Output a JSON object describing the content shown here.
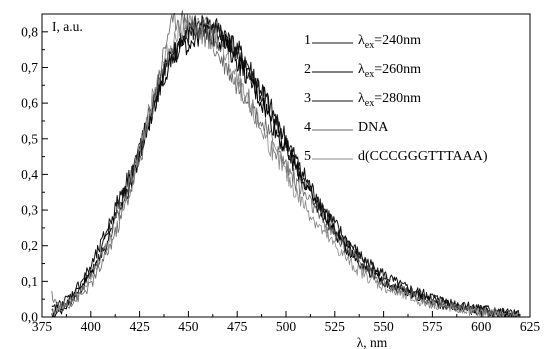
{
  "chart_data": {
    "type": "line",
    "ylabel": "I, a.u.",
    "xlabel": "λ, nm",
    "xlim": [
      375,
      625
    ],
    "ylim": [
      0.0,
      0.85
    ],
    "xticks": [
      "375",
      "400",
      "425",
      "450",
      "475",
      "500",
      "525",
      "550",
      "575",
      "600",
      "625"
    ],
    "yticks": [
      "0,0",
      "0,1",
      "0,2",
      "0,3",
      "0,4",
      "0,5",
      "0,6",
      "0,7",
      "0,8"
    ],
    "grid": false,
    "legend_position": "top-right",
    "legend": [
      {
        "num": "1",
        "label": "λex=240nm",
        "symbol": "λ",
        "sub": "ex",
        "rest": "=240nm"
      },
      {
        "num": "2",
        "label": "λex=260nm",
        "symbol": "λ",
        "sub": "ex",
        "rest": "=260nm"
      },
      {
        "num": "3",
        "label": "λex=280nm",
        "symbol": "λ",
        "sub": "ex",
        "rest": "=280nm"
      },
      {
        "num": "4",
        "label": "DNA"
      },
      {
        "num": "5",
        "label": "d(CCCGGGTTTAAA)"
      }
    ],
    "series": [
      {
        "name": "λex=240nm",
        "color": "#1a1a1a",
        "width": 1.0,
        "x": [
          380,
          385,
          390,
          395,
          400,
          405,
          410,
          415,
          420,
          425,
          430,
          435,
          440,
          445,
          450,
          455,
          460,
          465,
          470,
          475,
          480,
          485,
          490,
          495,
          500,
          505,
          510,
          515,
          520,
          525,
          530,
          535,
          540,
          545,
          550,
          555,
          560,
          565,
          570,
          575,
          580,
          585,
          590,
          595,
          600,
          605,
          610,
          615,
          620
        ],
        "y": [
          0.01,
          0.03,
          0.05,
          0.08,
          0.12,
          0.18,
          0.25,
          0.32,
          0.38,
          0.46,
          0.57,
          0.66,
          0.72,
          0.76,
          0.79,
          0.8,
          0.81,
          0.8,
          0.77,
          0.74,
          0.7,
          0.65,
          0.6,
          0.54,
          0.48,
          0.43,
          0.38,
          0.33,
          0.29,
          0.25,
          0.21,
          0.18,
          0.15,
          0.13,
          0.11,
          0.095,
          0.08,
          0.07,
          0.06,
          0.05,
          0.045,
          0.035,
          0.03,
          0.025,
          0.02,
          0.015,
          0.012,
          0.01,
          0.005
        ]
      },
      {
        "name": "λex=260nm",
        "color": "#000000",
        "width": 1.0,
        "x": [
          380,
          385,
          390,
          395,
          400,
          405,
          410,
          415,
          420,
          425,
          430,
          435,
          440,
          445,
          450,
          455,
          460,
          465,
          470,
          475,
          480,
          485,
          490,
          495,
          500,
          505,
          510,
          515,
          520,
          525,
          530,
          535,
          540,
          545,
          550,
          555,
          560,
          565,
          570,
          575,
          580,
          585,
          590,
          595,
          600,
          605,
          610,
          615,
          620
        ],
        "y": [
          0.0,
          0.02,
          0.05,
          0.09,
          0.12,
          0.17,
          0.23,
          0.3,
          0.37,
          0.45,
          0.55,
          0.64,
          0.71,
          0.75,
          0.77,
          0.79,
          0.8,
          0.78,
          0.76,
          0.72,
          0.68,
          0.63,
          0.58,
          0.52,
          0.47,
          0.42,
          0.37,
          0.32,
          0.28,
          0.24,
          0.2,
          0.17,
          0.14,
          0.12,
          0.1,
          0.085,
          0.07,
          0.06,
          0.05,
          0.04,
          0.035,
          0.03,
          0.025,
          0.02,
          0.015,
          0.01,
          0.008,
          0.005,
          0.003
        ]
      },
      {
        "name": "λex=280nm",
        "color": "#111111",
        "width": 1.0,
        "x": [
          380,
          385,
          390,
          395,
          400,
          405,
          410,
          415,
          420,
          425,
          430,
          435,
          440,
          445,
          450,
          455,
          460,
          465,
          470,
          475,
          480,
          485,
          490,
          495,
          500,
          505,
          510,
          515,
          520,
          525,
          530,
          535,
          540,
          545,
          550,
          555,
          560,
          565,
          570,
          575,
          580,
          585,
          590,
          595,
          600,
          605,
          610,
          615,
          620
        ],
        "y": [
          0.02,
          0.04,
          0.06,
          0.1,
          0.14,
          0.2,
          0.27,
          0.34,
          0.4,
          0.47,
          0.56,
          0.65,
          0.72,
          0.76,
          0.8,
          0.82,
          0.82,
          0.81,
          0.78,
          0.75,
          0.71,
          0.66,
          0.61,
          0.55,
          0.5,
          0.44,
          0.39,
          0.34,
          0.3,
          0.26,
          0.22,
          0.19,
          0.16,
          0.14,
          0.12,
          0.1,
          0.085,
          0.075,
          0.065,
          0.055,
          0.045,
          0.04,
          0.035,
          0.03,
          0.025,
          0.02,
          0.015,
          0.01,
          0.008
        ]
      },
      {
        "name": "DNA",
        "color": "#666666",
        "width": 0.8,
        "x": [
          380,
          385,
          390,
          395,
          400,
          405,
          410,
          415,
          420,
          425,
          430,
          435,
          440,
          445,
          450,
          455,
          460,
          465,
          470,
          475,
          480,
          485,
          490,
          495,
          500,
          505,
          510,
          515,
          520,
          525,
          530,
          535,
          540,
          545,
          550,
          555,
          560,
          565,
          570,
          575,
          580,
          585,
          590,
          595,
          600,
          605,
          610,
          615,
          620
        ],
        "y": [
          0.06,
          0.02,
          0.04,
          0.06,
          0.09,
          0.14,
          0.2,
          0.27,
          0.35,
          0.44,
          0.55,
          0.68,
          0.81,
          0.84,
          0.83,
          0.8,
          0.78,
          0.74,
          0.7,
          0.65,
          0.62,
          0.57,
          0.52,
          0.47,
          0.43,
          0.38,
          0.34,
          0.3,
          0.26,
          0.23,
          0.2,
          0.17,
          0.14,
          0.12,
          0.1,
          0.085,
          0.07,
          0.06,
          0.05,
          0.04,
          0.035,
          0.03,
          0.025,
          0.02,
          0.015,
          0.01,
          0.008,
          0.005,
          0.003
        ]
      },
      {
        "name": "d(CCCGGGTTTAAA)",
        "color": "#888888",
        "width": 0.8,
        "x": [
          380,
          385,
          390,
          395,
          400,
          405,
          410,
          415,
          420,
          425,
          430,
          435,
          440,
          445,
          450,
          455,
          460,
          465,
          470,
          475,
          480,
          485,
          490,
          495,
          500,
          505,
          510,
          515,
          520,
          525,
          530,
          535,
          540,
          545,
          550,
          555,
          560,
          565,
          570,
          575,
          580,
          585,
          590,
          595,
          600,
          605,
          610,
          615,
          620
        ],
        "y": [
          0.01,
          0.03,
          0.05,
          0.07,
          0.11,
          0.16,
          0.22,
          0.3,
          0.38,
          0.47,
          0.58,
          0.68,
          0.75,
          0.8,
          0.82,
          0.82,
          0.81,
          0.77,
          0.72,
          0.66,
          0.6,
          0.55,
          0.5,
          0.45,
          0.4,
          0.35,
          0.31,
          0.27,
          0.23,
          0.2,
          0.17,
          0.14,
          0.12,
          0.1,
          0.085,
          0.07,
          0.06,
          0.05,
          0.04,
          0.035,
          0.03,
          0.025,
          0.02,
          0.015,
          0.012,
          0.01,
          0.007,
          0.005,
          0.003
        ]
      }
    ]
  }
}
